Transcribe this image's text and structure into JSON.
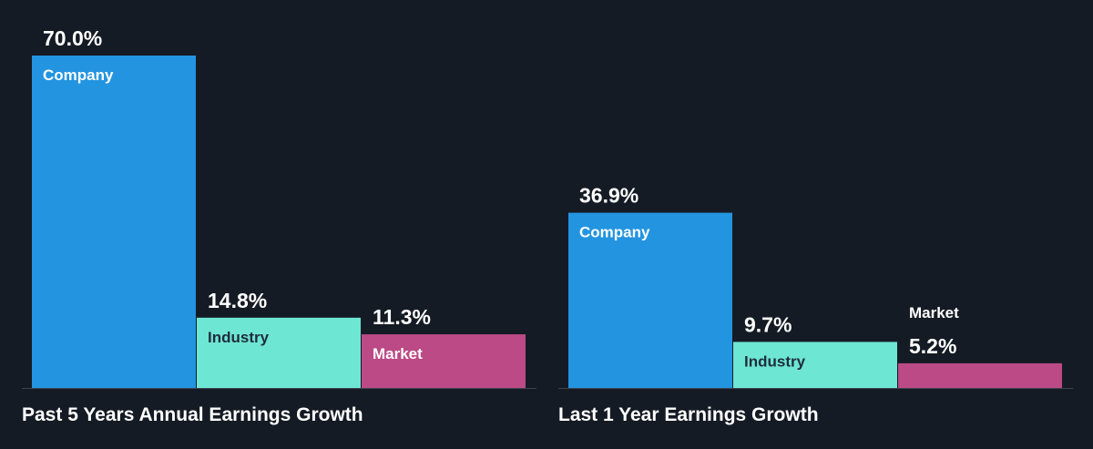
{
  "colors": {
    "background": "#151b24",
    "company": "#2394e0",
    "industry": "#6ee6d4",
    "market": "#bb4a86",
    "baseline": "#3c4450",
    "value_text": "#ffffff",
    "label_on_dark": "#ffffff",
    "label_on_light": "#1f2d3a"
  },
  "chart_data": [
    {
      "type": "bar",
      "title": "Past 5 Years Annual Earnings Growth",
      "categories": [
        "Company",
        "Industry",
        "Market"
      ],
      "values": [
        70.0,
        14.8,
        11.3
      ],
      "value_labels": [
        "70.0%",
        "14.8%",
        "11.3%"
      ],
      "ylim": [
        0,
        70.0
      ],
      "grid": false,
      "legend": "none"
    },
    {
      "type": "bar",
      "title": "Last 1 Year Earnings Growth",
      "categories": [
        "Company",
        "Industry",
        "Market"
      ],
      "values": [
        36.9,
        9.7,
        5.2
      ],
      "value_labels": [
        "36.9%",
        "9.7%",
        "5.2%"
      ],
      "ylim": [
        0,
        70.0
      ],
      "grid": false,
      "legend": "none"
    }
  ]
}
